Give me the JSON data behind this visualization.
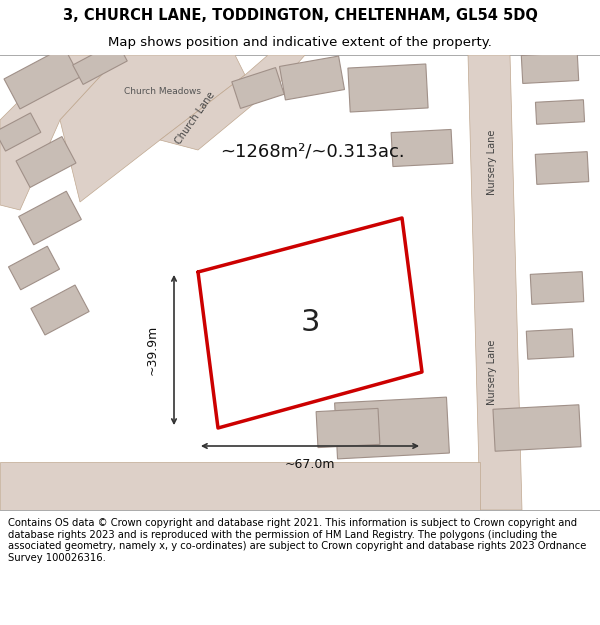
{
  "title_line1": "3, CHURCH LANE, TODDINGTON, CHELTENHAM, GL54 5DQ",
  "title_line2": "Map shows position and indicative extent of the property.",
  "area_text": "~1268m²/~0.313ac.",
  "property_number": "3",
  "dim_width": "~67.0m",
  "dim_height": "~39.9m",
  "footer_text": "Contains OS data © Crown copyright and database right 2021. This information is subject to Crown copyright and database rights 2023 and is reproduced with the permission of HM Land Registry. The polygons (including the associated geometry, namely x, y co-ordinates) are subject to Crown copyright and database rights 2023 Ordnance Survey 100026316.",
  "map_bg": "#f0ece8",
  "road_color": "#ddd0c8",
  "building_color": "#c8bdb5",
  "property_edge": "#cc0000",
  "road_label_color": "#444444",
  "text_color": "#111111",
  "title_fontsize": 10.5,
  "subtitle_fontsize": 9.5,
  "area_fontsize": 13,
  "dim_fontsize": 9,
  "footer_fontsize": 7.2,
  "prop_label_fontsize": 22
}
